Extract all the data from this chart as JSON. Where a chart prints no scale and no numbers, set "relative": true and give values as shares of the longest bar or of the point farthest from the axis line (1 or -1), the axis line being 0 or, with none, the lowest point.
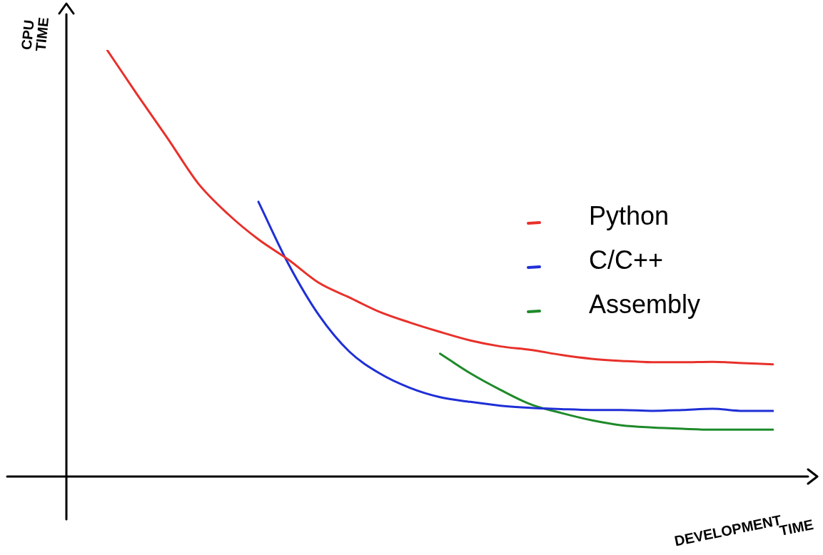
{
  "chart_data": {
    "type": "line",
    "relative": true,
    "xlabel": "DEVELOPMENT TIME",
    "ylabel": "CPU TIME",
    "legend": "right",
    "marker": "none",
    "line_style": "solid",
    "grid": false,
    "tick_labels": false,
    "categories": [
      null,
      null,
      null,
      null,
      null,
      null,
      null,
      null,
      null,
      null,
      null,
      null,
      null,
      null,
      null,
      null,
      null,
      null,
      null,
      null,
      null,
      null,
      null
    ],
    "series": [
      {
        "name": "Python",
        "color": "#e8302a",
        "values": [
          1.0,
          0.895,
          0.793,
          0.688,
          0.615,
          0.556,
          0.508,
          0.454,
          0.42,
          0.386,
          0.361,
          0.339,
          0.319,
          0.305,
          0.297,
          0.285,
          0.276,
          0.271,
          0.268,
          0.268,
          0.269,
          0.266,
          0.263
        ]
      },
      {
        "name": "C/C++",
        "color": "#1f2fd6",
        "values": [
          null,
          null,
          null,
          null,
          null,
          0.644,
          0.497,
          0.378,
          0.293,
          0.242,
          0.208,
          0.186,
          0.175,
          0.166,
          0.161,
          0.158,
          0.156,
          0.156,
          0.154,
          0.156,
          0.159,
          0.154,
          0.154
        ]
      },
      {
        "name": "Assembly",
        "color": "#1e8a2a",
        "values": [
          null,
          null,
          null,
          null,
          null,
          null,
          null,
          null,
          null,
          null,
          null,
          0.288,
          0.242,
          0.203,
          0.169,
          0.149,
          0.132,
          0.12,
          0.115,
          0.112,
          0.11,
          0.11,
          0.11
        ]
      }
    ]
  }
}
